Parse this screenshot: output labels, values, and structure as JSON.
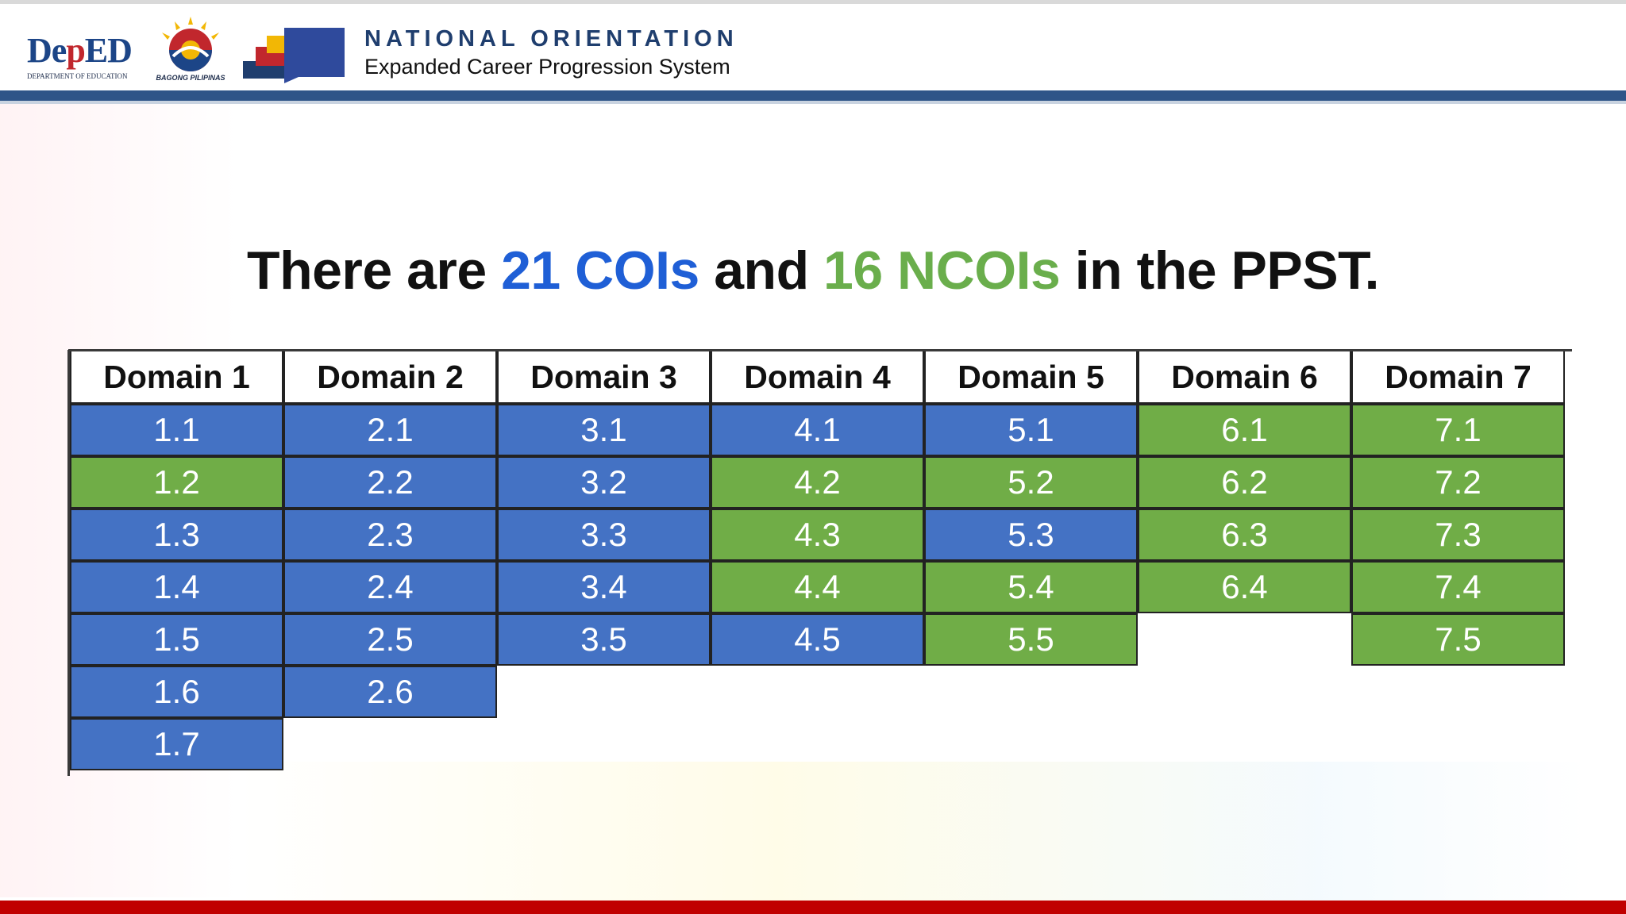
{
  "header": {
    "deped_logo": {
      "word_left": "De",
      "word_mid": "p",
      "word_right": "ED",
      "subtext": "DEPARTMENT OF EDUCATION"
    },
    "bagong_logo": {
      "subtext": "BAGONG PILIPINAS"
    },
    "title": "NATIONAL ORIENTATION",
    "subtitle": "Expanded Career Progression System"
  },
  "headline": {
    "part1": "There are ",
    "coi": "21 COIs",
    "part2": " and ",
    "ncoi": "16 NCOIs",
    "part3": " in the PPST."
  },
  "colors": {
    "coi_blue": "#4472c4",
    "ncoi_green": "#70ad47",
    "header_bar": "#2f5488",
    "footer_bar": "#c00000"
  },
  "table": {
    "columns": [
      {
        "header": "Domain 1",
        "cells": [
          {
            "label": "1.1",
            "type": "COI"
          },
          {
            "label": "1.2",
            "type": "NCOI"
          },
          {
            "label": "1.3",
            "type": "COI"
          },
          {
            "label": "1.4",
            "type": "COI"
          },
          {
            "label": "1.5",
            "type": "COI"
          },
          {
            "label": "1.6",
            "type": "COI"
          },
          {
            "label": "1.7",
            "type": "COI"
          }
        ]
      },
      {
        "header": "Domain 2",
        "cells": [
          {
            "label": "2.1",
            "type": "COI"
          },
          {
            "label": "2.2",
            "type": "COI"
          },
          {
            "label": "2.3",
            "type": "COI"
          },
          {
            "label": "2.4",
            "type": "COI"
          },
          {
            "label": "2.5",
            "type": "COI"
          },
          {
            "label": "2.6",
            "type": "COI"
          }
        ]
      },
      {
        "header": "Domain 3",
        "cells": [
          {
            "label": "3.1",
            "type": "COI"
          },
          {
            "label": "3.2",
            "type": "COI"
          },
          {
            "label": "3.3",
            "type": "COI"
          },
          {
            "label": "3.4",
            "type": "COI"
          },
          {
            "label": "3.5",
            "type": "COI"
          }
        ]
      },
      {
        "header": "Domain 4",
        "cells": [
          {
            "label": "4.1",
            "type": "COI"
          },
          {
            "label": "4.2",
            "type": "NCOI"
          },
          {
            "label": "4.3",
            "type": "NCOI"
          },
          {
            "label": "4.4",
            "type": "NCOI"
          },
          {
            "label": "4.5",
            "type": "COI"
          }
        ]
      },
      {
        "header": "Domain 5",
        "cells": [
          {
            "label": "5.1",
            "type": "COI"
          },
          {
            "label": "5.2",
            "type": "NCOI"
          },
          {
            "label": "5.3",
            "type": "COI"
          },
          {
            "label": "5.4",
            "type": "NCOI"
          },
          {
            "label": "5.5",
            "type": "NCOI"
          }
        ]
      },
      {
        "header": "Domain 6",
        "cells": [
          {
            "label": "6.1",
            "type": "NCOI"
          },
          {
            "label": "6.2",
            "type": "NCOI"
          },
          {
            "label": "6.3",
            "type": "NCOI"
          },
          {
            "label": "6.4",
            "type": "NCOI"
          }
        ]
      },
      {
        "header": "Domain 7",
        "cells": [
          {
            "label": "7.1",
            "type": "NCOI"
          },
          {
            "label": "7.2",
            "type": "NCOI"
          },
          {
            "label": "7.3",
            "type": "NCOI"
          },
          {
            "label": "7.4",
            "type": "NCOI"
          },
          {
            "label": "7.5",
            "type": "NCOI"
          }
        ]
      }
    ]
  }
}
